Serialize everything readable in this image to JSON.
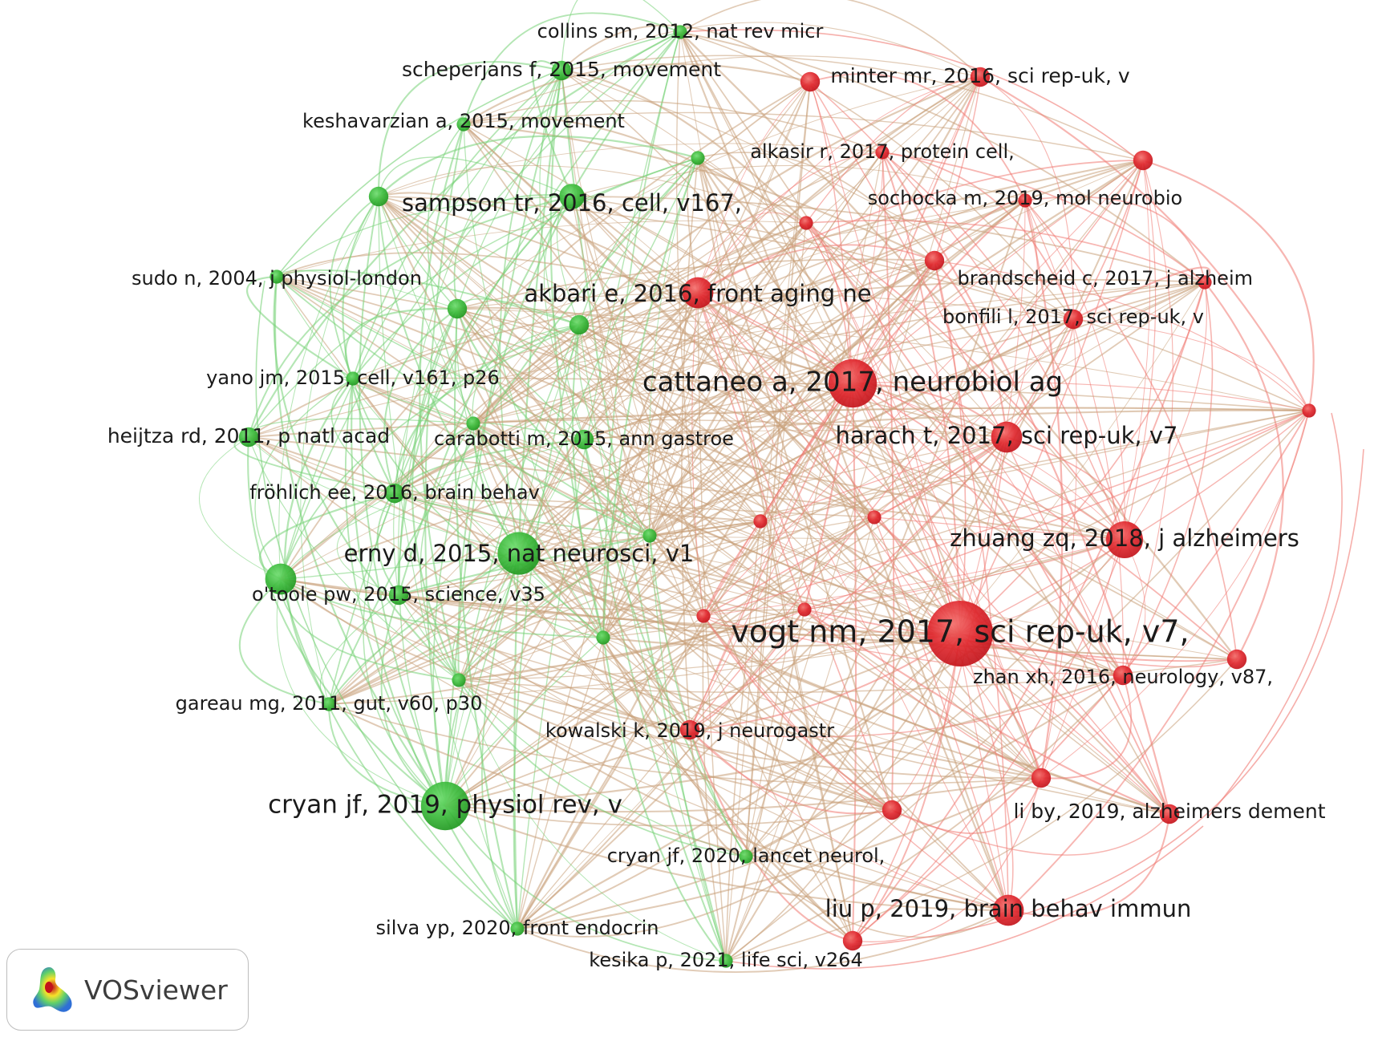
{
  "brand": {
    "name": "VOSviewer",
    "logo_icon": "vosviewer-density-logo-icon"
  },
  "colors": {
    "green_cluster": "#3dbb3d",
    "red_cluster": "#e0282e",
    "green_edge": "#76d176",
    "red_edge": "#f07a73",
    "mixed_edge": "#c9a17a"
  },
  "nodes": [
    {
      "id": "collins",
      "label": "collins sm, 2012, nat rev micr",
      "cluster": "green",
      "weight": 1
    },
    {
      "id": "scheperjans",
      "label": "scheperjans f, 2015, movement",
      "cluster": "green",
      "weight": 2
    },
    {
      "id": "minter",
      "label": "minter mr, 2016, sci rep-uk, v",
      "cluster": "red",
      "weight": 2
    },
    {
      "id": "keshavarzian",
      "label": "keshavarzian a, 2015, movement",
      "cluster": "green",
      "weight": 1
    },
    {
      "id": "alkasir",
      "label": "alkasir r, 2017, protein cell,",
      "cluster": "red",
      "weight": 1
    },
    {
      "id": "sampson",
      "label": "sampson tr, 2016, cell, v167,",
      "cluster": "green",
      "weight": 3
    },
    {
      "id": "sochocka",
      "label": "sochocka m, 2019, mol neurobio",
      "cluster": "red",
      "weight": 1
    },
    {
      "id": "sudo",
      "label": "sudo n, 2004, j physiol-london",
      "cluster": "green",
      "weight": 1
    },
    {
      "id": "brandscheid",
      "label": "brandscheid c, 2017, j alzheim",
      "cluster": "red",
      "weight": 1
    },
    {
      "id": "akbari",
      "label": "akbari e, 2016, front aging ne",
      "cluster": "red",
      "weight": 4
    },
    {
      "id": "bonfili",
      "label": "bonfili l, 2017, sci rep-uk, v",
      "cluster": "red",
      "weight": 2
    },
    {
      "id": "yano",
      "label": "yano jm, 2015, cell, v161, p26",
      "cluster": "green",
      "weight": 1
    },
    {
      "id": "cattaneo",
      "label": "cattaneo a, 2017, neurobiol ag",
      "cluster": "red",
      "weight": 7
    },
    {
      "id": "heijtza",
      "label": "heijtza rd, 2011, p natl acad",
      "cluster": "green",
      "weight": 2
    },
    {
      "id": "carabotti",
      "label": "carabotti m, 2015, ann gastroe",
      "cluster": "green",
      "weight": 2
    },
    {
      "id": "harach",
      "label": "harach t, 2017, sci rep-uk, v7",
      "cluster": "red",
      "weight": 4
    },
    {
      "id": "frohlich",
      "label": "fröhlich ee, 2016, brain behav",
      "cluster": "green",
      "weight": 2
    },
    {
      "id": "erny",
      "label": "erny d, 2015, nat neurosci, v1",
      "cluster": "green",
      "weight": 6
    },
    {
      "id": "zhuang",
      "label": "zhuang zq, 2018, j alzheimers",
      "cluster": "red",
      "weight": 5
    },
    {
      "id": "otoole",
      "label": "o'toole pw, 2015, science, v35",
      "cluster": "green",
      "weight": 2
    },
    {
      "id": "vogt",
      "label": "vogt nm, 2017, sci rep-uk, v7,",
      "cluster": "red",
      "weight": 10
    },
    {
      "id": "zhan",
      "label": "zhan xh, 2016, neurology, v87,",
      "cluster": "red",
      "weight": 2
    },
    {
      "id": "gareau",
      "label": "gareau mg, 2011, gut, v60, p30",
      "cluster": "green",
      "weight": 1
    },
    {
      "id": "kowalski",
      "label": "kowalski k, 2019, j neurogastr",
      "cluster": "red",
      "weight": 2
    },
    {
      "id": "cryan2019",
      "label": "cryan jf, 2019, physiol rev, v",
      "cluster": "green",
      "weight": 7
    },
    {
      "id": "liby",
      "label": "li by, 2019, alzheimers dement",
      "cluster": "red",
      "weight": 2
    },
    {
      "id": "cryan2020",
      "label": "cryan jf, 2020, lancet neurol,",
      "cluster": "green",
      "weight": 1
    },
    {
      "id": "liu",
      "label": "liu p, 2019, brain behav immun",
      "cluster": "red",
      "weight": 4
    },
    {
      "id": "silva",
      "label": "silva yp, 2020, front endocrin",
      "cluster": "green",
      "weight": 1
    },
    {
      "id": "kesika",
      "label": "kesika p, 2021, life sci, v264",
      "cluster": "green",
      "weight": 1
    },
    {
      "id": "g_a",
      "label": "",
      "cluster": "green",
      "weight": 2
    },
    {
      "id": "g_b",
      "label": "",
      "cluster": "green",
      "weight": 1
    },
    {
      "id": "g_c",
      "label": "",
      "cluster": "green",
      "weight": 2
    },
    {
      "id": "g_d",
      "label": "",
      "cluster": "green",
      "weight": 1
    },
    {
      "id": "g_e",
      "label": "",
      "cluster": "green",
      "weight": 1
    },
    {
      "id": "g_f",
      "label": "",
      "cluster": "green",
      "weight": 1
    },
    {
      "id": "g_g",
      "label": "",
      "cluster": "green",
      "weight": 4
    },
    {
      "id": "g_h",
      "label": "",
      "cluster": "green",
      "weight": 2
    },
    {
      "id": "g_i",
      "label": "",
      "cluster": "green",
      "weight": 1
    },
    {
      "id": "r_a",
      "label": "",
      "cluster": "red",
      "weight": 2
    },
    {
      "id": "r_b",
      "label": "",
      "cluster": "red",
      "weight": 2
    },
    {
      "id": "r_c",
      "label": "",
      "cluster": "red",
      "weight": 1
    },
    {
      "id": "r_d",
      "label": "",
      "cluster": "red",
      "weight": 2
    },
    {
      "id": "r_e",
      "label": "",
      "cluster": "red",
      "weight": 1
    },
    {
      "id": "r_f",
      "label": "",
      "cluster": "red",
      "weight": 1
    },
    {
      "id": "r_g",
      "label": "",
      "cluster": "red",
      "weight": 1
    },
    {
      "id": "r_h",
      "label": "",
      "cluster": "red",
      "weight": 1
    },
    {
      "id": "r_i",
      "label": "",
      "cluster": "red",
      "weight": 2
    },
    {
      "id": "r_j",
      "label": "",
      "cluster": "red",
      "weight": 2
    },
    {
      "id": "r_k",
      "label": "",
      "cluster": "red",
      "weight": 2
    },
    {
      "id": "r_l",
      "label": "",
      "cluster": "red",
      "weight": 1
    },
    {
      "id": "r_m",
      "label": "",
      "cluster": "red",
      "weight": 2
    }
  ]
}
